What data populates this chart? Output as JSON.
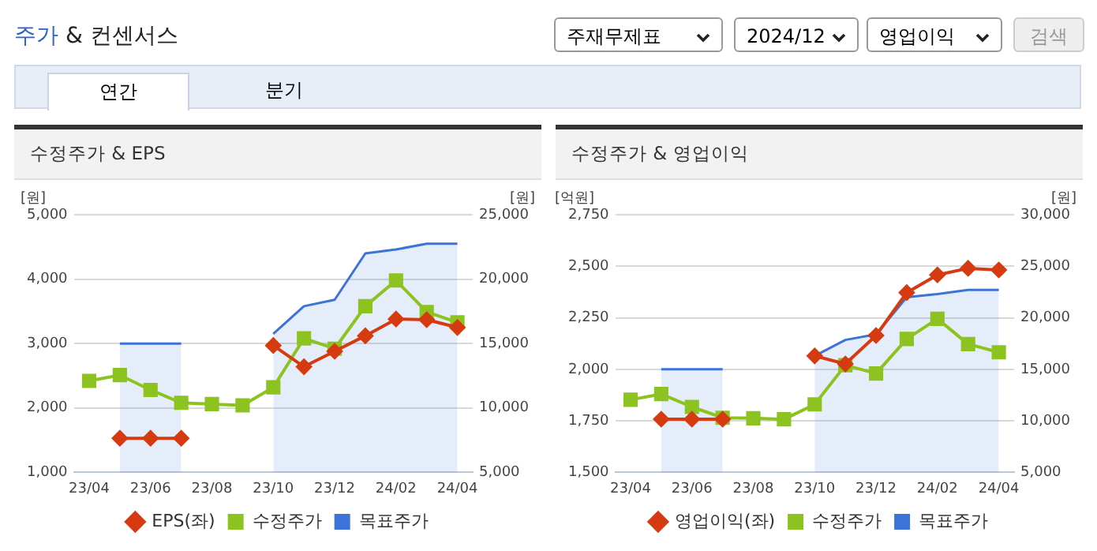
{
  "chart_data": [
    {
      "type": "other",
      "title": "주가 & 컨센서스",
      "annotations": [
        "주재무제표",
        "2024/12",
        "영업이익",
        "검색",
        "연간",
        "분기"
      ]
    },
    {
      "type": "line",
      "title": "수정주가 & EPS",
      "ylabel": "[원]",
      "y2label": "[원]",
      "categories": [
        "23/04",
        null,
        "23/06",
        null,
        "23/08",
        null,
        "23/10",
        null,
        "23/12",
        null,
        "24/02",
        null,
        "24/04"
      ],
      "series": [
        {
          "name": "목표주가",
          "type": "area",
          "axis": "y2",
          "color": "#3b73d9",
          "marker": "none",
          "values": [
            null,
            15000,
            15000,
            15000,
            null,
            null,
            15750,
            17900,
            18400,
            22000,
            22300,
            22750,
            22750
          ]
        },
        {
          "name": "EPS(좌)",
          "type": "line",
          "color": "#d53a10",
          "marker": "diamond",
          "values": [
            null,
            1530,
            1530,
            1530,
            null,
            null,
            2970,
            2640,
            2880,
            3120,
            3380,
            3370,
            3250
          ]
        },
        {
          "name": "수정주가",
          "type": "line",
          "axis": "y2",
          "color": "#8cc320",
          "marker": "square",
          "values": [
            12100,
            12550,
            11400,
            10400,
            10300,
            10200,
            11600,
            15400,
            14600,
            17900,
            19900,
            17450,
            16650
          ]
        }
      ],
      "ylim": [
        1000,
        5000
      ],
      "yticks": [
        {
          "value": 1000,
          "label": "1,000"
        },
        {
          "value": 2000,
          "label": "2,000"
        },
        {
          "value": 3000,
          "label": "3,000"
        },
        {
          "value": 4000,
          "label": "4,000"
        },
        {
          "value": 5000,
          "label": "5,000"
        }
      ],
      "y2lim": [
        5000,
        25000
      ],
      "y2ticks": [
        {
          "value": 5000,
          "label": "5,000"
        },
        {
          "value": 10000,
          "label": "10,000"
        },
        {
          "value": 15000,
          "label": "15,000"
        },
        {
          "value": 20000,
          "label": "20,000"
        },
        {
          "value": 25000,
          "label": "25,000"
        }
      ],
      "grid": "y",
      "legend": "bottom"
    },
    {
      "type": "line",
      "title": "수정주가 & 영업이익",
      "ylabel": "[억원]",
      "y2label": "[원]",
      "categories": [
        "23/04",
        null,
        "23/06",
        null,
        "23/08",
        null,
        "23/10",
        null,
        "23/12",
        null,
        "24/02",
        null,
        "24/04"
      ],
      "series": [
        {
          "name": "목표주가",
          "type": "area",
          "axis": "y2",
          "color": "#3b73d9",
          "marker": "none",
          "values": [
            null,
            15000,
            15000,
            15000,
            null,
            null,
            16300,
            17850,
            18400,
            22000,
            22300,
            22700,
            22700
          ]
        },
        {
          "name": "영업이익(좌)",
          "type": "line",
          "color": "#d53a10",
          "marker": "diamond",
          "values": [
            null,
            1758,
            1758,
            1758,
            null,
            null,
            2065,
            2026,
            2164,
            2372,
            2458,
            2490,
            2482
          ]
        },
        {
          "name": "수정주가",
          "type": "line",
          "axis": "y2",
          "color": "#8cc320",
          "marker": "square",
          "values": [
            12050,
            12600,
            11350,
            10300,
            10250,
            10150,
            11600,
            15400,
            14600,
            17950,
            19900,
            17450,
            16650
          ]
        }
      ],
      "ylim": [
        1500,
        2750
      ],
      "yticks": [
        {
          "value": 1500,
          "label": "1,500"
        },
        {
          "value": 1750,
          "label": "1,750"
        },
        {
          "value": 2000,
          "label": "2,000"
        },
        {
          "value": 2250,
          "label": "2,250"
        },
        {
          "value": 2500,
          "label": "2,500"
        },
        {
          "value": 2750,
          "label": "2,750"
        }
      ],
      "y2lim": [
        5000,
        30000
      ],
      "y2ticks": [
        {
          "value": 5000,
          "label": "5,000"
        },
        {
          "value": 10000,
          "label": "10,000"
        },
        {
          "value": 15000,
          "label": "15,000"
        },
        {
          "value": 20000,
          "label": "20,000"
        },
        {
          "value": 25000,
          "label": "25,000"
        },
        {
          "value": 30000,
          "label": "30,000"
        }
      ],
      "grid": "y",
      "legend": "bottom"
    }
  ]
}
